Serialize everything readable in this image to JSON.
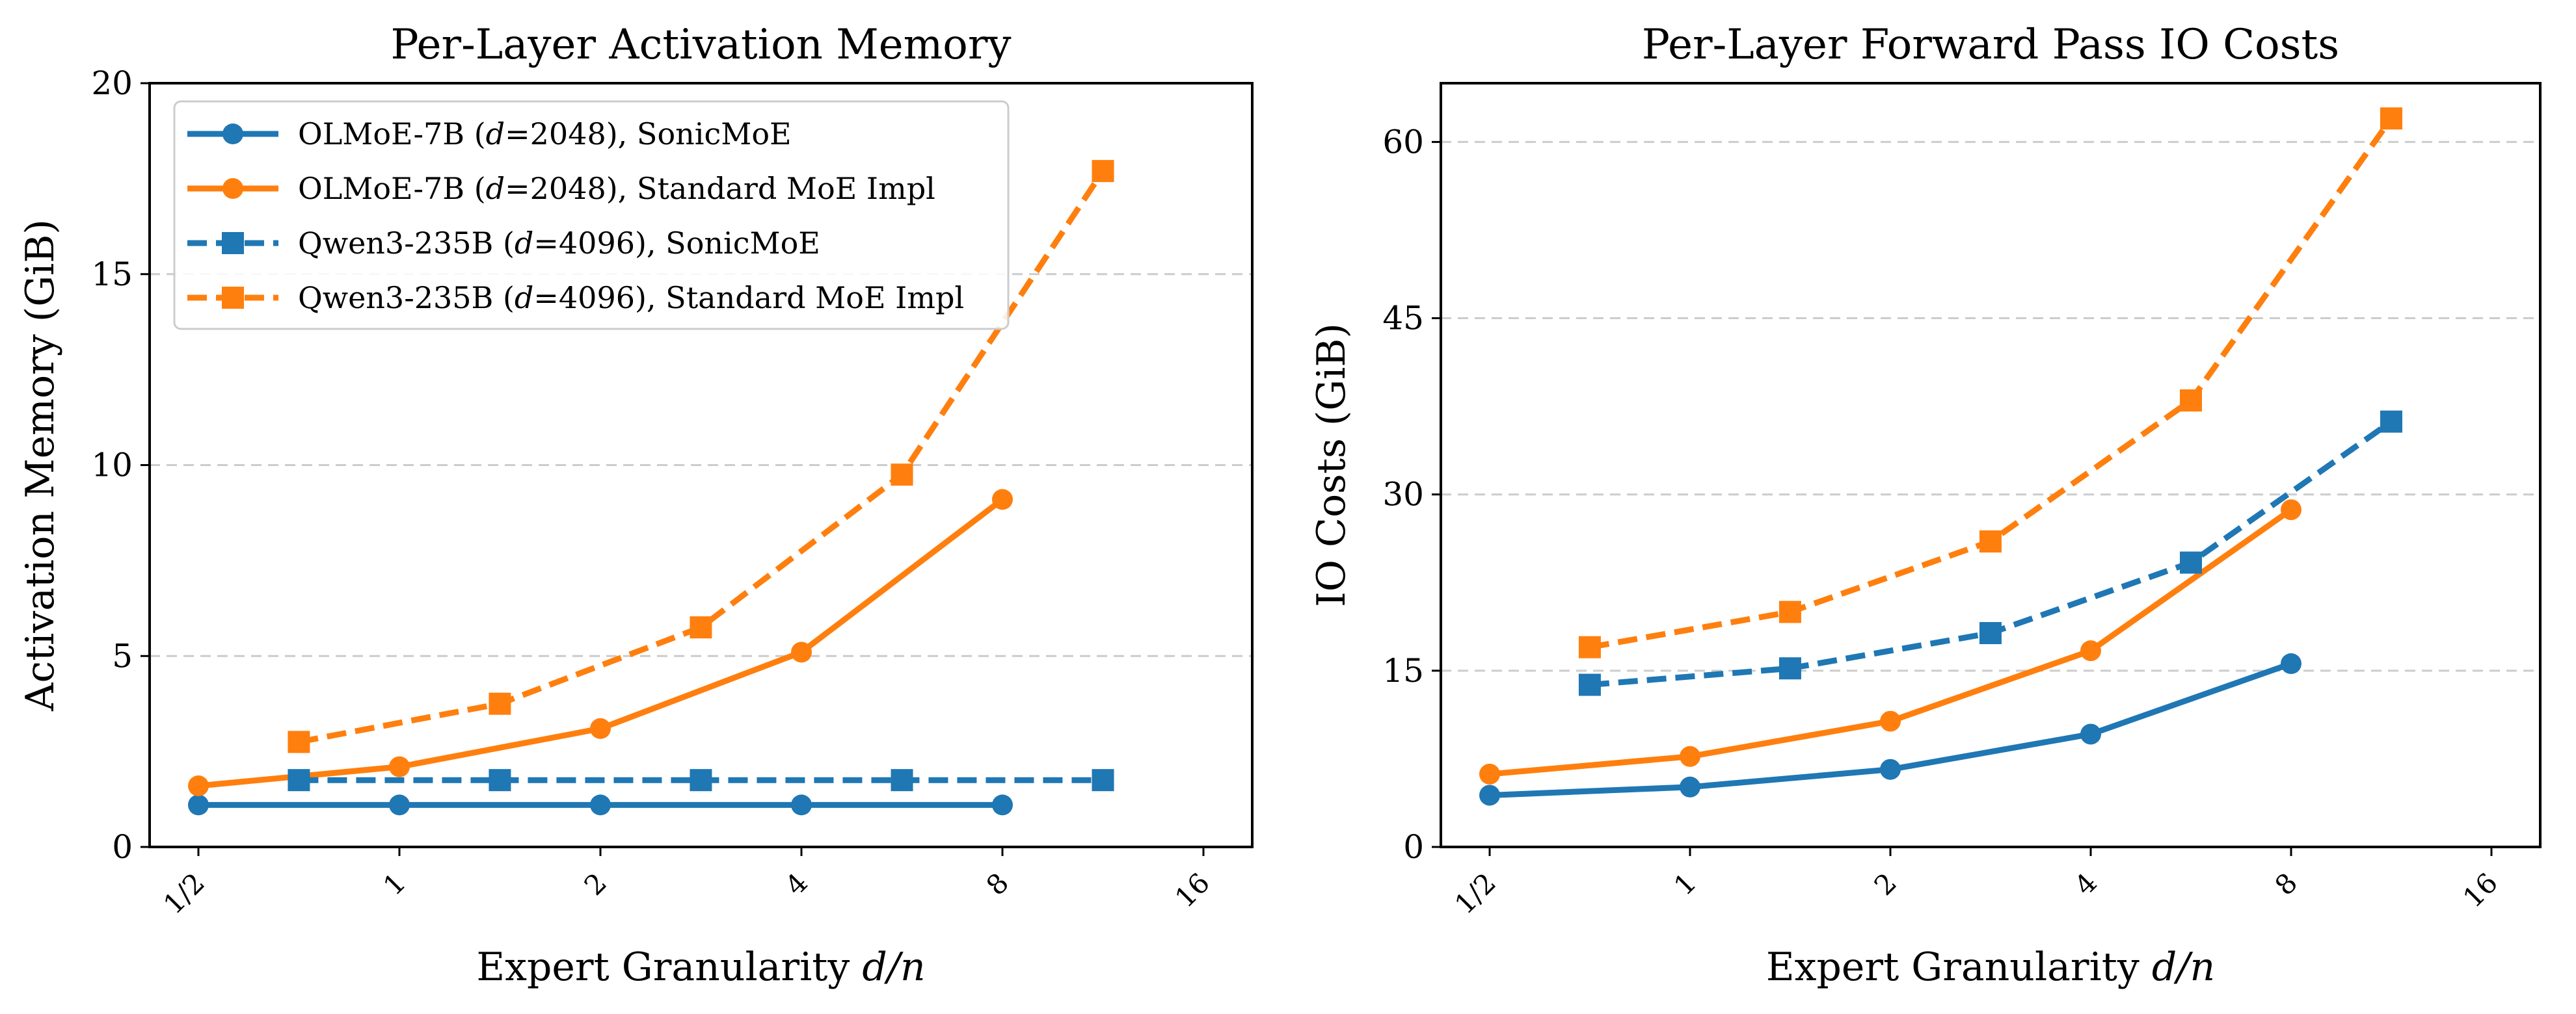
{
  "colors": {
    "sonic": "#1f77b4",
    "standard": "#ff7f0e"
  },
  "chart_data": [
    {
      "type": "line",
      "title": "Per-Layer Activation Memory",
      "xlabel_text": "Expert Granularity ",
      "xlabel_var": "d/n",
      "ylabel": "Activation Memory (GiB)",
      "x_scale": "log2",
      "xlim": [
        0.5,
        16
      ],
      "ylim": [
        0,
        20
      ],
      "x_ticks": [
        0.5,
        1,
        2,
        4,
        8,
        16
      ],
      "x_tick_labels": [
        "1/2",
        "1",
        "2",
        "4",
        "8",
        "16"
      ],
      "y_ticks": [
        0,
        5,
        10,
        15,
        20
      ],
      "y_tick_labels": [
        "0",
        "5",
        "10",
        "15",
        "20"
      ],
      "grid": "y-dashed",
      "legend_position": "upper-left",
      "series": [
        {
          "name_prefix": "OLMoE-7B (",
          "name_var": "d",
          "name_suffix": "=2048), SonicMoE",
          "color": "#1f77b4",
          "dash": "solid",
          "marker": "circle",
          "x": [
            0.5,
            1,
            2,
            4,
            8
          ],
          "values": [
            1.1,
            1.1,
            1.1,
            1.1,
            1.1
          ]
        },
        {
          "name_prefix": "OLMoE-7B (",
          "name_var": "d",
          "name_suffix": "=2048), Standard MoE Impl",
          "color": "#ff7f0e",
          "dash": "solid",
          "marker": "circle",
          "x": [
            0.5,
            1,
            2,
            4,
            8
          ],
          "values": [
            1.6,
            2.1,
            3.1,
            5.1,
            9.1
          ]
        },
        {
          "name_prefix": "Qwen3-235B (",
          "name_var": "d",
          "name_suffix": "=4096), SonicMoE",
          "color": "#1f77b4",
          "dash": "dashed",
          "marker": "square",
          "x": [
            0.707,
            1.414,
            2.828,
            5.657,
            11.314
          ],
          "values": [
            1.75,
            1.75,
            1.75,
            1.75,
            1.75
          ]
        },
        {
          "name_prefix": "Qwen3-235B (",
          "name_var": "d",
          "name_suffix": "=4096), Standard MoE Impl",
          "color": "#ff7f0e",
          "dash": "dashed",
          "marker": "square",
          "x": [
            0.707,
            1.414,
            2.828,
            5.657,
            11.314
          ],
          "values": [
            2.75,
            3.75,
            5.75,
            9.75,
            17.7
          ]
        }
      ]
    },
    {
      "type": "line",
      "title": "Per-Layer Forward Pass IO Costs",
      "xlabel_text": "Expert Granularity ",
      "xlabel_var": "d/n",
      "ylabel": "IO Costs (GiB)",
      "x_scale": "log2",
      "xlim": [
        0.5,
        16
      ],
      "ylim": [
        0,
        65
      ],
      "x_ticks": [
        0.5,
        1,
        2,
        4,
        8,
        16
      ],
      "x_tick_labels": [
        "1/2",
        "1",
        "2",
        "4",
        "8",
        "16"
      ],
      "y_ticks": [
        0,
        15,
        30,
        45,
        60
      ],
      "y_tick_labels": [
        "0",
        "15",
        "30",
        "45",
        "60"
      ],
      "grid": "y-dashed",
      "series": [
        {
          "name": "OLMoE-7B (d=2048), SonicMoE",
          "color": "#1f77b4",
          "dash": "solid",
          "marker": "circle",
          "x": [
            0.5,
            1,
            2,
            4,
            8
          ],
          "values": [
            4.4,
            5.1,
            6.6,
            9.6,
            15.6
          ]
        },
        {
          "name": "OLMoE-7B (d=2048), Standard MoE Impl",
          "color": "#ff7f0e",
          "dash": "solid",
          "marker": "circle",
          "x": [
            0.5,
            1,
            2,
            4,
            8
          ],
          "values": [
            6.2,
            7.7,
            10.7,
            16.7,
            28.7
          ]
        },
        {
          "name": "Qwen3-235B (d=4096), SonicMoE",
          "color": "#1f77b4",
          "dash": "dashed",
          "marker": "square",
          "x": [
            0.707,
            1.414,
            2.828,
            5.657,
            11.314
          ],
          "values": [
            13.8,
            15.2,
            18.2,
            24.2,
            36.2
          ]
        },
        {
          "name": "Qwen3-235B (d=4096), Standard MoE Impl",
          "color": "#ff7f0e",
          "dash": "dashed",
          "marker": "square",
          "x": [
            0.707,
            1.414,
            2.828,
            5.657,
            11.314
          ],
          "values": [
            17.0,
            20.0,
            26.0,
            38.0,
            62.0
          ]
        }
      ]
    }
  ]
}
